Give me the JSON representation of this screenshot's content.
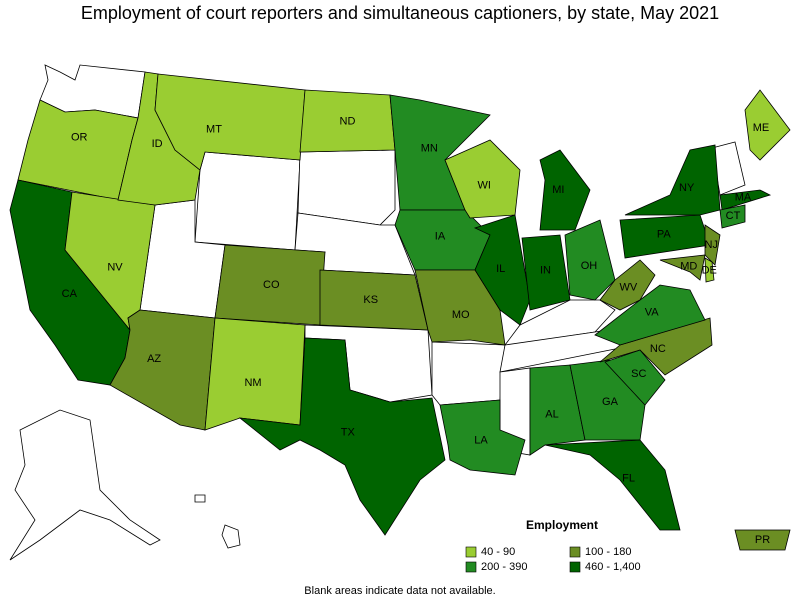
{
  "title": "Employment of court reporters and simultaneous captioners, by state, May 2021",
  "legend": {
    "title": "Employment",
    "items": [
      {
        "label": "40 - 90",
        "color": "#9acd32"
      },
      {
        "label": "100 - 180",
        "color": "#6b8e23"
      },
      {
        "label": "200 - 390",
        "color": "#228b22"
      },
      {
        "label": "460 - 1,400",
        "color": "#006400"
      }
    ]
  },
  "states": [
    {
      "label": "OR",
      "color": "#9acd32"
    },
    {
      "label": "CA",
      "color": "#006400"
    },
    {
      "label": "NV",
      "color": "#9acd32"
    },
    {
      "label": "ID",
      "color": "#9acd32"
    },
    {
      "label": "MT",
      "color": "#9acd32"
    },
    {
      "label": "AZ",
      "color": "#6b8e23"
    },
    {
      "label": "CO",
      "color": "#6b8e23"
    },
    {
      "label": "NM",
      "color": "#9acd32"
    },
    {
      "label": "ND",
      "color": "#9acd32"
    },
    {
      "label": "KS",
      "color": "#6b8e23"
    },
    {
      "label": "TX",
      "color": "#006400"
    },
    {
      "label": "MN",
      "color": "#228b22"
    },
    {
      "label": "IA",
      "color": "#228b22"
    },
    {
      "label": "MO",
      "color": "#6b8e23"
    },
    {
      "label": "LA",
      "color": "#228b22"
    },
    {
      "label": "WI",
      "color": "#9acd32"
    },
    {
      "label": "IL",
      "color": "#006400"
    },
    {
      "label": "MI",
      "color": "#006400"
    },
    {
      "label": "IN",
      "color": "#006400"
    },
    {
      "label": "OH",
      "color": "#228b22"
    },
    {
      "label": "AL",
      "color": "#228b22"
    },
    {
      "label": "GA",
      "color": "#228b22"
    },
    {
      "label": "FL",
      "color": "#006400"
    },
    {
      "label": "SC",
      "color": "#228b22"
    },
    {
      "label": "NC",
      "color": "#6b8e23"
    },
    {
      "label": "VA",
      "color": "#228b22"
    },
    {
      "label": "WV",
      "color": "#6b8e23"
    },
    {
      "label": "PA",
      "color": "#006400"
    },
    {
      "label": "NY",
      "color": "#006400"
    },
    {
      "label": "ME",
      "color": "#9acd32"
    },
    {
      "label": "MA",
      "color": "#006400"
    },
    {
      "label": "CT",
      "color": "#228b22"
    },
    {
      "label": "NJ",
      "color": "#6b8e23"
    },
    {
      "label": "MD",
      "color": "#6b8e23"
    },
    {
      "label": "DE",
      "color": "#9acd32"
    },
    {
      "label": "PR",
      "color": "#6b8e23"
    }
  ],
  "footnote": "Blank areas indicate data not available."
}
